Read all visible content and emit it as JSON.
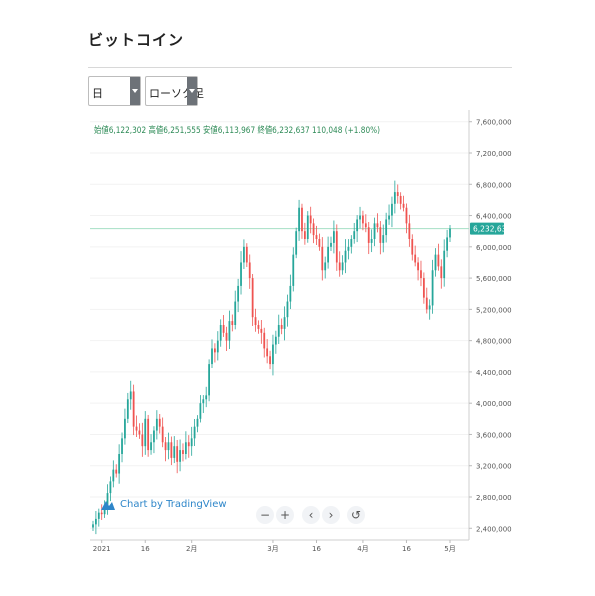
{
  "page": {
    "title": "ビットコイン"
  },
  "controls": {
    "period": {
      "value": "日"
    },
    "chart_type": {
      "value": "ローソク足"
    }
  },
  "ohlc_header": "始値6,122,302 高値6,251,555 安値6,113,967 終値6,232,637 110,048 (+1.80%)",
  "watermark": "Chart by TradingView",
  "nav": {
    "zoom_out": "−",
    "zoom_in": "+",
    "prev": "‹",
    "next": "›",
    "reset": "↺"
  },
  "colors": {
    "up": "#26a69a",
    "down": "#ef5350",
    "last_price": "#26a69a",
    "watermark": "#2e86c9"
  },
  "chart_data": {
    "type": "candlestick",
    "currency": "JPY",
    "y_ticks": [
      "2,400,000",
      "2,800,000",
      "3,200,000",
      "3,600,000",
      "4,000,000",
      "4,400,000",
      "4,800,000",
      "5,200,000",
      "5,600,000",
      "6,000,000",
      "6,400,000",
      "6,800,000",
      "7,200,000",
      "7,600,000"
    ],
    "y_tick_values": [
      2400000,
      2800000,
      3200000,
      3600000,
      4000000,
      4400000,
      4800000,
      5200000,
      5600000,
      6000000,
      6400000,
      6800000,
      7200000,
      7600000
    ],
    "ylim": [
      2250000,
      7750000
    ],
    "x_ticks": [
      {
        "label": "2021",
        "index": 3
      },
      {
        "label": "16",
        "index": 18
      },
      {
        "label": "2月",
        "index": 34
      },
      {
        "label": "3月",
        "index": 62
      },
      {
        "label": "16",
        "index": 77
      },
      {
        "label": "4月",
        "index": 93
      },
      {
        "label": "16",
        "index": 108
      },
      {
        "label": "5月",
        "index": 123
      }
    ],
    "last_price": {
      "label": "6,232,637",
      "value": 6232637
    },
    "grid": true,
    "closes": [
      2450000,
      2520000,
      2600000,
      2580000,
      2700000,
      2850000,
      3000000,
      3150000,
      3100000,
      3350000,
      3550000,
      3800000,
      4050000,
      4150000,
      3700000,
      3650000,
      3600000,
      3450000,
      3800000,
      3400000,
      3500000,
      3650000,
      3800000,
      3700000,
      3500000,
      3400000,
      3500000,
      3300000,
      3450000,
      3250000,
      3400000,
      3350000,
      3500000,
      3450000,
      3550000,
      3700000,
      3800000,
      4000000,
      4050000,
      4100000,
      4500000,
      4700000,
      4650000,
      4800000,
      5000000,
      4900000,
      4800000,
      5050000,
      5000000,
      5300000,
      5500000,
      5800000,
      6000000,
      5800000,
      5600000,
      5100000,
      5000000,
      4950000,
      4900000,
      4700000,
      4600000,
      4500000,
      4750000,
      4850000,
      5000000,
      4950000,
      5100000,
      5300000,
      5500000,
      5900000,
      6200000,
      6500000,
      6200000,
      6100000,
      6400000,
      6300000,
      6150000,
      6100000,
      6000000,
      5700000,
      5800000,
      6000000,
      6050000,
      6200000,
      5800000,
      5700000,
      5800000,
      5950000,
      6000000,
      6100000,
      6200000,
      6350000,
      6400000,
      6300000,
      6250000,
      6050000,
      6100000,
      6300000,
      6250000,
      6050000,
      6150000,
      6350000,
      6400000,
      6550000,
      6700000,
      6650000,
      6550000,
      6500000,
      6300000,
      6100000,
      5900000,
      5800000,
      5700000,
      5600000,
      5350000,
      5200000,
      5250000,
      5700000,
      5900000,
      5750000,
      5600000,
      5950000,
      6120000,
      6232637
    ]
  }
}
